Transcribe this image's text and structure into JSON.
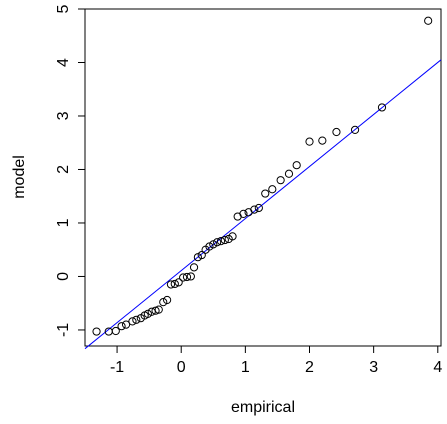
{
  "chart_data": {
    "type": "scatter",
    "title": "",
    "xlabel": "empirical",
    "ylabel": "model",
    "xlim": [
      -1.5,
      4.05
    ],
    "ylim": [
      -1.3,
      5.0
    ],
    "x_ticks": [
      "-1",
      "0",
      "1",
      "2",
      "3",
      "4"
    ],
    "y_ticks": [
      "-1",
      "0",
      "1",
      "2",
      "3",
      "4",
      "5"
    ],
    "x_tick_values": [
      -1,
      0,
      1,
      2,
      3,
      4
    ],
    "y_tick_values": [
      -1,
      0,
      1,
      2,
      3,
      4,
      5
    ],
    "grid": false,
    "legend": "none",
    "point_color": "#000000",
    "line_color": "#0000ff",
    "reference_line": {
      "x": [
        -1.5,
        4.05
      ],
      "y": [
        -1.35,
        4.05
      ]
    },
    "points": [
      {
        "x": -1.32,
        "y": -1.03
      },
      {
        "x": -1.13,
        "y": -1.03
      },
      {
        "x": -1.02,
        "y": -1.02
      },
      {
        "x": -0.93,
        "y": -0.93
      },
      {
        "x": -0.86,
        "y": -0.9
      },
      {
        "x": -0.76,
        "y": -0.84
      },
      {
        "x": -0.7,
        "y": -0.81
      },
      {
        "x": -0.63,
        "y": -0.78
      },
      {
        "x": -0.57,
        "y": -0.73
      },
      {
        "x": -0.52,
        "y": -0.7
      },
      {
        "x": -0.46,
        "y": -0.66
      },
      {
        "x": -0.4,
        "y": -0.64
      },
      {
        "x": -0.35,
        "y": -0.62
      },
      {
        "x": -0.28,
        "y": -0.48
      },
      {
        "x": -0.22,
        "y": -0.44
      },
      {
        "x": -0.16,
        "y": -0.15
      },
      {
        "x": -0.1,
        "y": -0.14
      },
      {
        "x": -0.04,
        "y": -0.11
      },
      {
        "x": 0.03,
        "y": -0.02
      },
      {
        "x": 0.09,
        "y": -0.01
      },
      {
        "x": 0.15,
        "y": 0.0
      },
      {
        "x": 0.2,
        "y": 0.17
      },
      {
        "x": 0.26,
        "y": 0.36
      },
      {
        "x": 0.32,
        "y": 0.4
      },
      {
        "x": 0.38,
        "y": 0.5
      },
      {
        "x": 0.44,
        "y": 0.56
      },
      {
        "x": 0.5,
        "y": 0.6
      },
      {
        "x": 0.56,
        "y": 0.64
      },
      {
        "x": 0.62,
        "y": 0.66
      },
      {
        "x": 0.68,
        "y": 0.68
      },
      {
        "x": 0.74,
        "y": 0.7
      },
      {
        "x": 0.8,
        "y": 0.75
      },
      {
        "x": 0.88,
        "y": 1.12
      },
      {
        "x": 0.97,
        "y": 1.17
      },
      {
        "x": 1.05,
        "y": 1.2
      },
      {
        "x": 1.14,
        "y": 1.25
      },
      {
        "x": 1.21,
        "y": 1.28
      },
      {
        "x": 1.31,
        "y": 1.55
      },
      {
        "x": 1.42,
        "y": 1.63
      },
      {
        "x": 1.55,
        "y": 1.8
      },
      {
        "x": 1.68,
        "y": 1.92
      },
      {
        "x": 1.8,
        "y": 2.08
      },
      {
        "x": 2.0,
        "y": 2.52
      },
      {
        "x": 2.2,
        "y": 2.54
      },
      {
        "x": 2.42,
        "y": 2.7
      },
      {
        "x": 2.71,
        "y": 2.74
      },
      {
        "x": 3.13,
        "y": 3.16
      },
      {
        "x": 3.85,
        "y": 4.78
      }
    ]
  }
}
